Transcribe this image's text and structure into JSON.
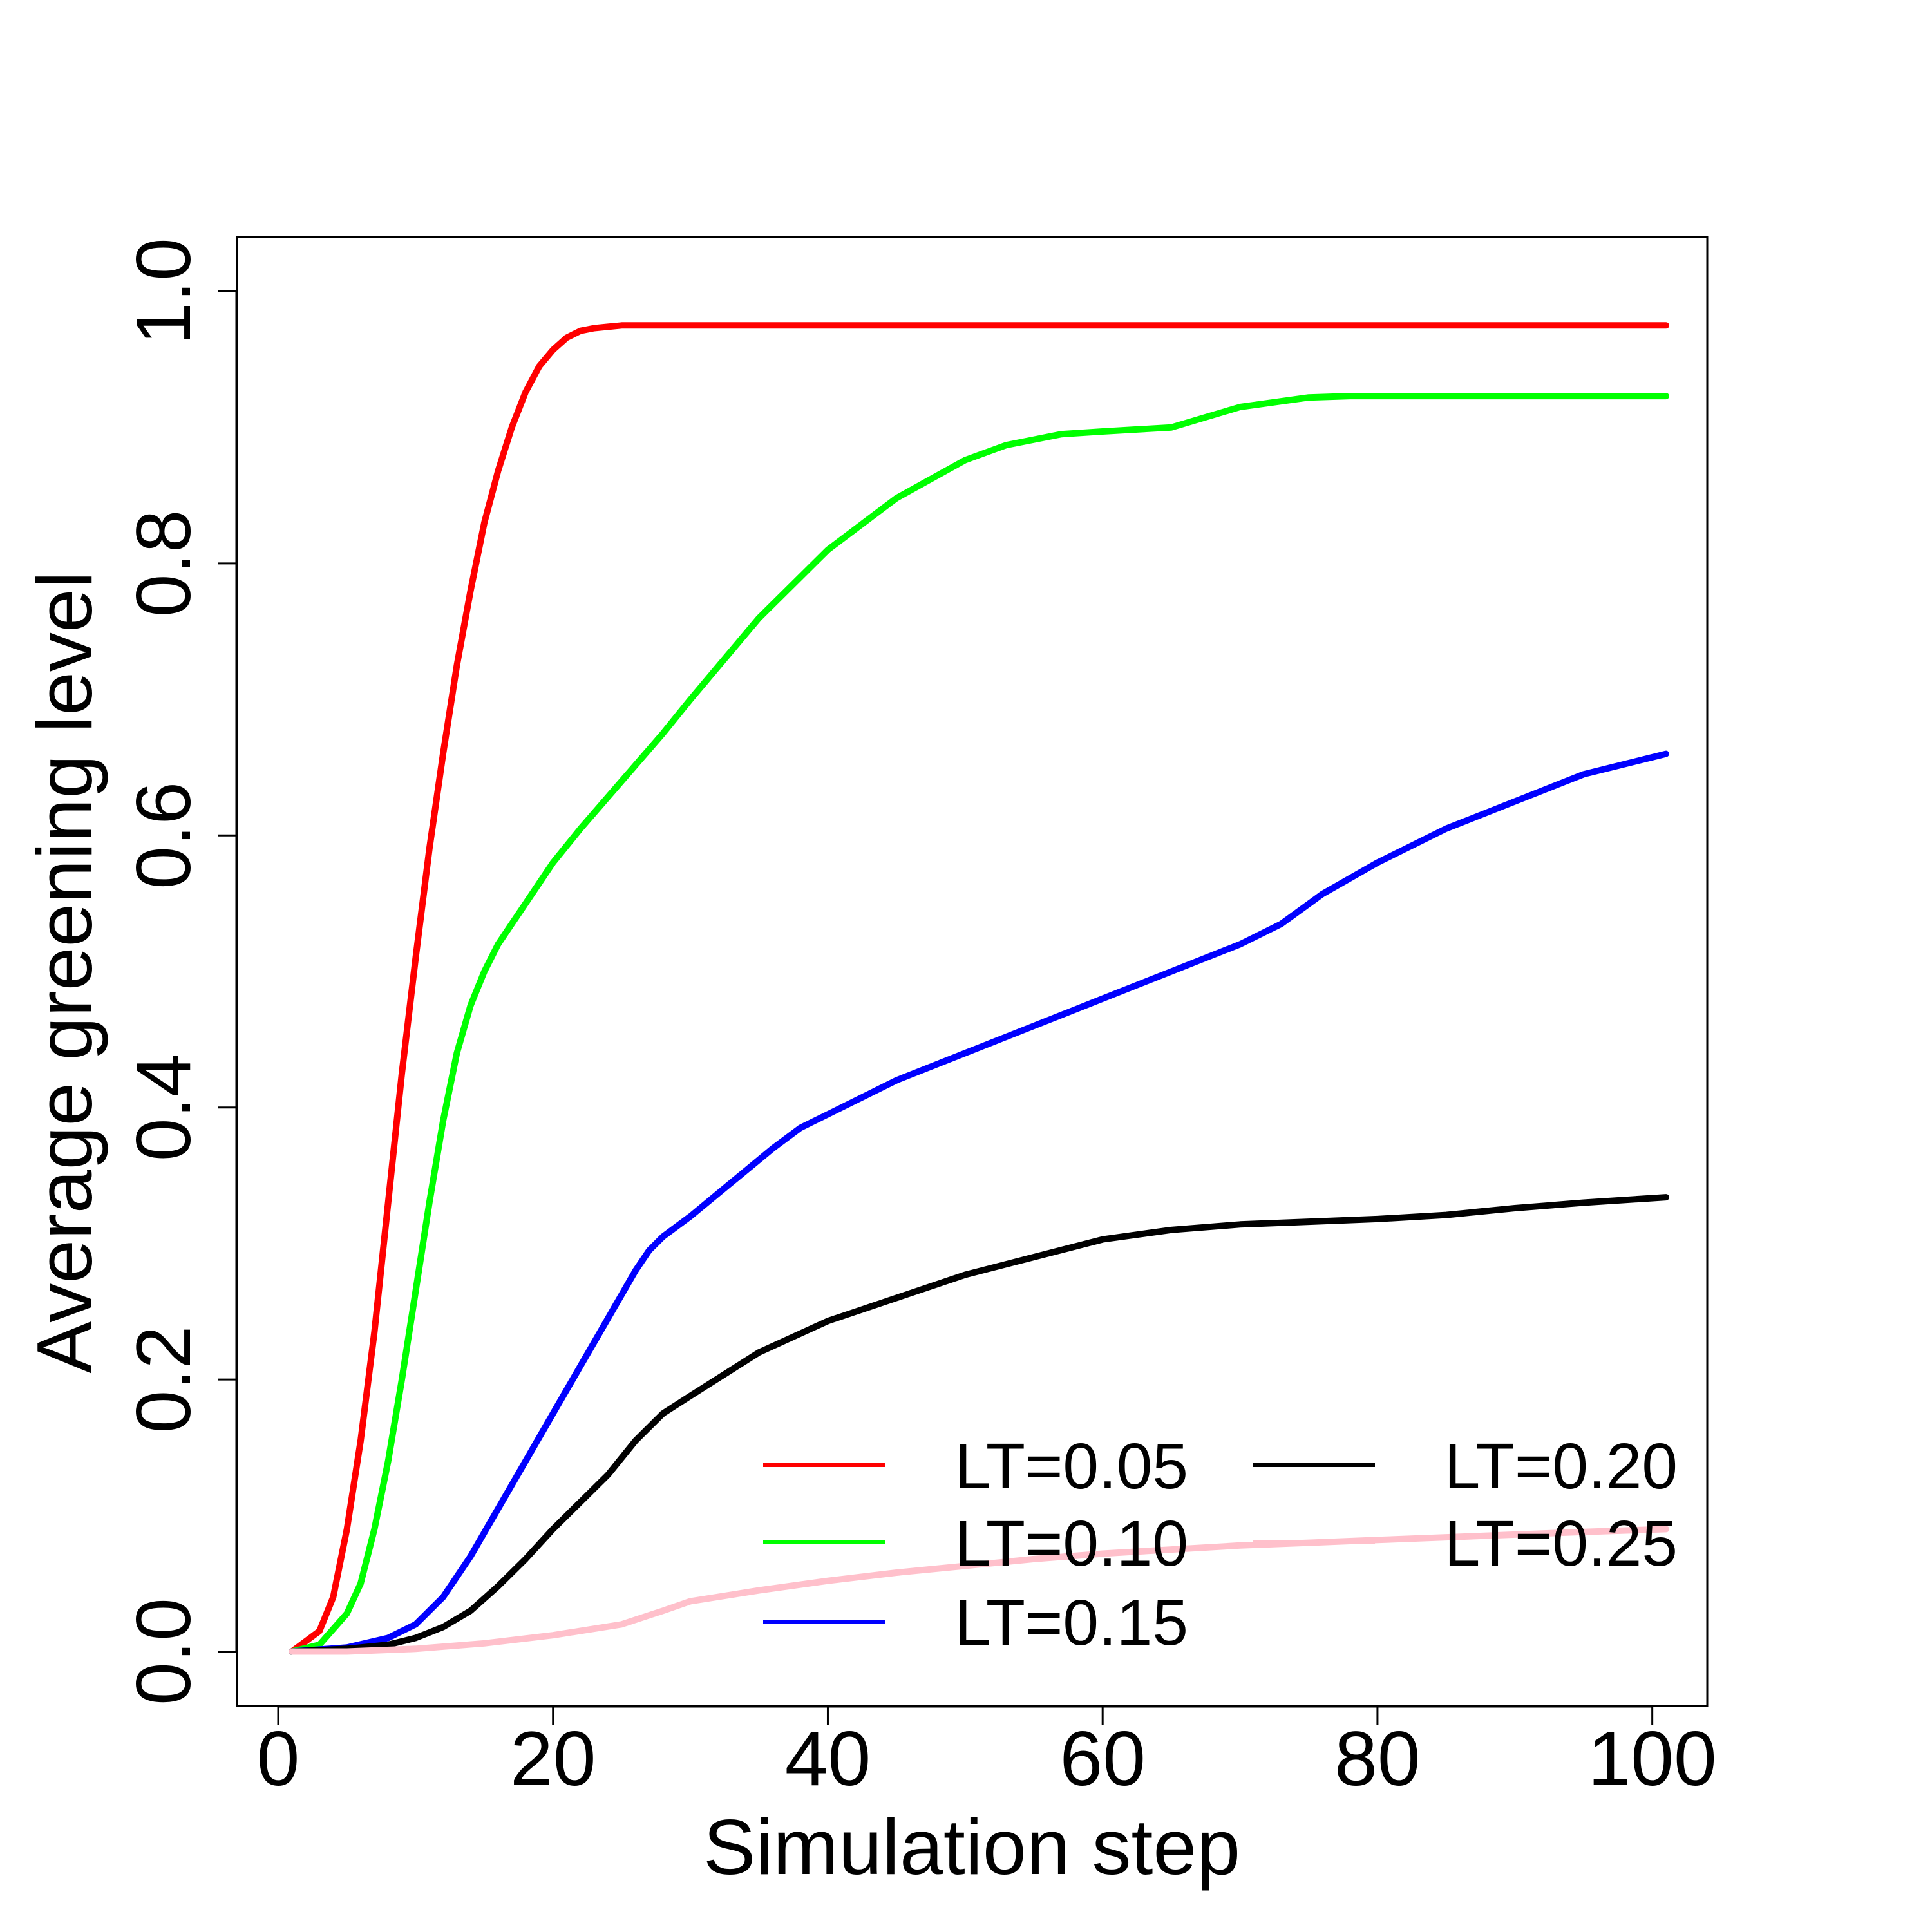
{
  "chart_data": {
    "type": "line",
    "title": "",
    "xlabel": "Simulation step",
    "ylabel": "Average greening level",
    "xlim": [
      -3,
      104
    ],
    "ylim": [
      -0.04,
      1.04
    ],
    "xticks": [
      0,
      20,
      40,
      60,
      80,
      100
    ],
    "xtick_labels": [
      "0",
      "20",
      "40",
      "60",
      "80",
      "100"
    ],
    "yticks": [
      0.0,
      0.2,
      0.4,
      0.6,
      0.8,
      1.0
    ],
    "ytick_labels": [
      "0.0",
      "0.2",
      "0.4",
      "0.6",
      "0.8",
      "1.0"
    ],
    "grid": false,
    "legend_position": "bottom-right",
    "series": [
      {
        "name": "LT=0.05",
        "color": "#ff0000",
        "x": [
          1,
          3,
          4,
          5,
          6,
          7,
          8,
          9,
          10,
          11,
          12,
          13,
          14,
          15,
          16,
          17,
          18,
          19,
          20,
          21,
          22,
          23,
          24,
          25,
          27,
          30,
          40,
          60,
          80,
          101
        ],
        "y": [
          0.0,
          0.015,
          0.04,
          0.09,
          0.155,
          0.235,
          0.33,
          0.425,
          0.51,
          0.59,
          0.66,
          0.725,
          0.78,
          0.83,
          0.868,
          0.9,
          0.926,
          0.945,
          0.957,
          0.966,
          0.971,
          0.973,
          0.974,
          0.975,
          0.975,
          0.975,
          0.975,
          0.975,
          0.975,
          0.975
        ]
      },
      {
        "name": "LT=0.10",
        "color": "#00ff00",
        "x": [
          1,
          3,
          5,
          6,
          7,
          8,
          9,
          10,
          11,
          12,
          13,
          14,
          15,
          16,
          17,
          18,
          19,
          20,
          22,
          25,
          28,
          30,
          35,
          40,
          45,
          50,
          53,
          57,
          60,
          65,
          70,
          75,
          78,
          85,
          101
        ],
        "y": [
          0.0,
          0.005,
          0.028,
          0.05,
          0.09,
          0.14,
          0.2,
          0.265,
          0.33,
          0.39,
          0.44,
          0.475,
          0.5,
          0.52,
          0.535,
          0.55,
          0.565,
          0.58,
          0.605,
          0.64,
          0.675,
          0.7,
          0.76,
          0.81,
          0.848,
          0.876,
          0.887,
          0.895,
          0.897,
          0.9,
          0.915,
          0.922,
          0.923,
          0.923,
          0.923
        ]
      },
      {
        "name": "LT=0.15",
        "color": "#0000ff",
        "x": [
          1,
          5,
          8,
          10,
          12,
          14,
          16,
          18,
          20,
          22,
          24,
          26,
          27,
          28,
          30,
          33,
          36,
          38,
          40,
          45,
          50,
          55,
          60,
          65,
          70,
          73,
          76,
          80,
          85,
          90,
          95,
          101
        ],
        "y": [
          0.0,
          0.003,
          0.01,
          0.02,
          0.04,
          0.07,
          0.105,
          0.14,
          0.175,
          0.21,
          0.245,
          0.28,
          0.295,
          0.305,
          0.32,
          0.345,
          0.37,
          0.385,
          0.395,
          0.42,
          0.44,
          0.46,
          0.48,
          0.5,
          0.52,
          0.535,
          0.557,
          0.58,
          0.605,
          0.625,
          0.645,
          0.66
        ]
      },
      {
        "name": "LT=0.20",
        "color": "#000000",
        "x": [
          1,
          5,
          8,
          10,
          12,
          14,
          16,
          18,
          20,
          22,
          24,
          26,
          28,
          30,
          35,
          40,
          45,
          50,
          55,
          60,
          65,
          70,
          75,
          80,
          85,
          90,
          95,
          101
        ],
        "y": [
          0.0,
          0.002,
          0.005,
          0.01,
          0.018,
          0.03,
          0.048,
          0.068,
          0.09,
          0.11,
          0.13,
          0.155,
          0.175,
          0.188,
          0.22,
          0.243,
          0.26,
          0.277,
          0.29,
          0.303,
          0.31,
          0.314,
          0.316,
          0.318,
          0.321,
          0.326,
          0.33,
          0.334
        ]
      },
      {
        "name": "LT=0.25",
        "color": "#ffc0cb",
        "x": [
          1,
          5,
          10,
          15,
          20,
          25,
          28,
          30,
          35,
          40,
          45,
          50,
          55,
          60,
          65,
          70,
          75,
          80,
          85,
          90,
          95,
          101
        ],
        "y": [
          0.0,
          0.0,
          0.002,
          0.006,
          0.012,
          0.02,
          0.03,
          0.037,
          0.045,
          0.052,
          0.058,
          0.063,
          0.068,
          0.072,
          0.075,
          0.078,
          0.08,
          0.082,
          0.084,
          0.086,
          0.088,
          0.09
        ]
      }
    ]
  }
}
